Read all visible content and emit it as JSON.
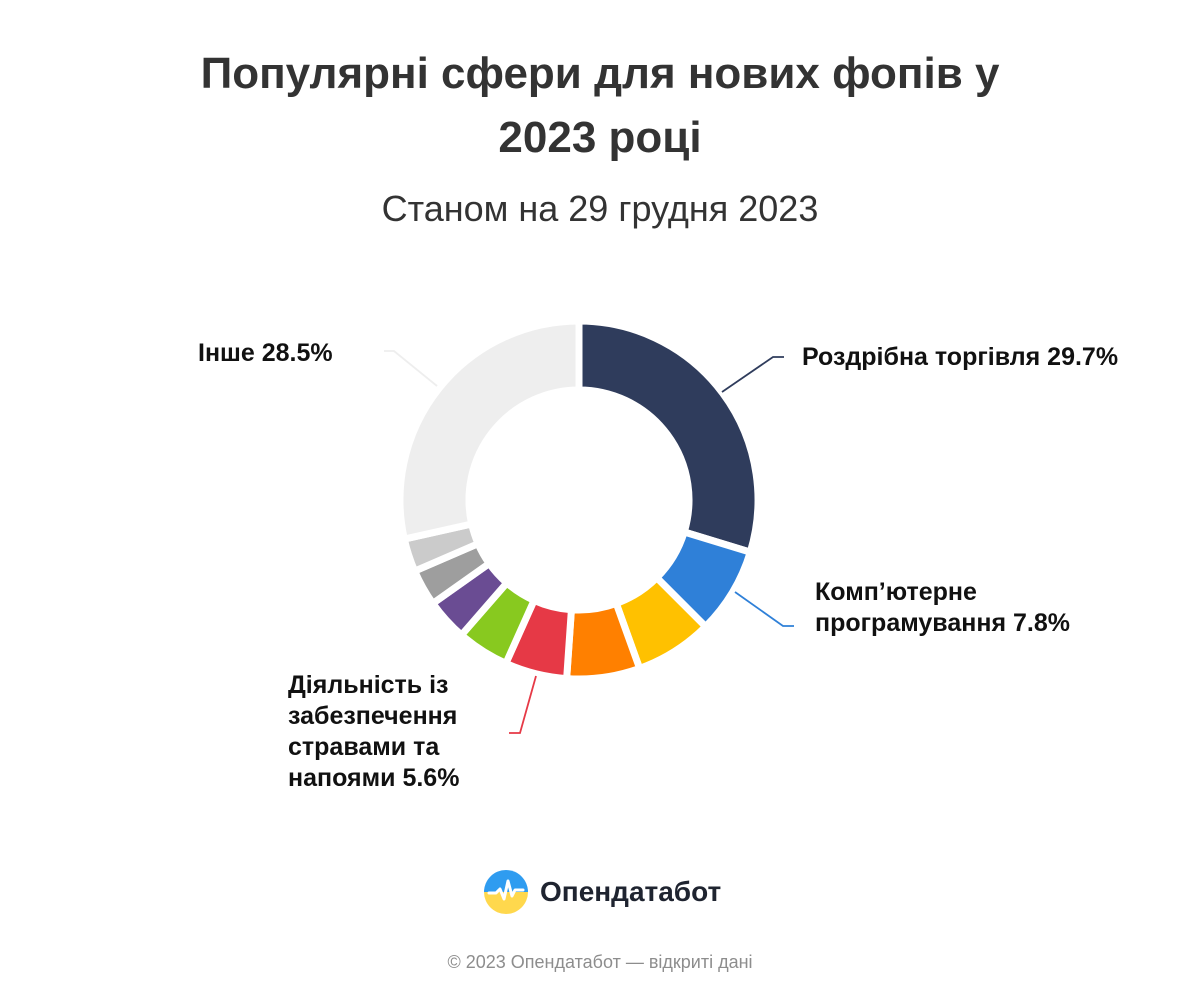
{
  "chart_data": {
    "type": "pie",
    "title": "Популярні сфери для нових фопів у 2023 році",
    "subtitle": "Станом на 29 грудня 2023",
    "categories": [
      "Роздрібна торгівля",
      "Комп’ютерне програмування",
      "",
      "",
      "Діяльність із забезпечення стравами та напоями",
      "",
      "",
      "",
      "",
      "Інше"
    ],
    "values": [
      29.7,
      7.8,
      7.0,
      6.6,
      5.6,
      4.7,
      3.8,
      3.3,
      3.0,
      28.5
    ],
    "colors": [
      "#2f3c5c",
      "#2f80d8",
      "#ffc100",
      "#ff8000",
      "#e63946",
      "#88c91f",
      "#6a4c93",
      "#9e9e9e",
      "#cbcbcb",
      "#eeeeee"
    ],
    "labels": {
      "retail": "Роздрібна торгівля 29.7%",
      "programming": "Комп’ютерне програмування 7.8%",
      "food": "Діяльність із забезпечення стравами та напоями 5.6%",
      "other": "Інше 28.5%"
    },
    "legend": "none",
    "grid": false
  },
  "branding": {
    "name": "Опендатабот",
    "footer": "© 2023 Опендатабот — відкриті дані"
  }
}
